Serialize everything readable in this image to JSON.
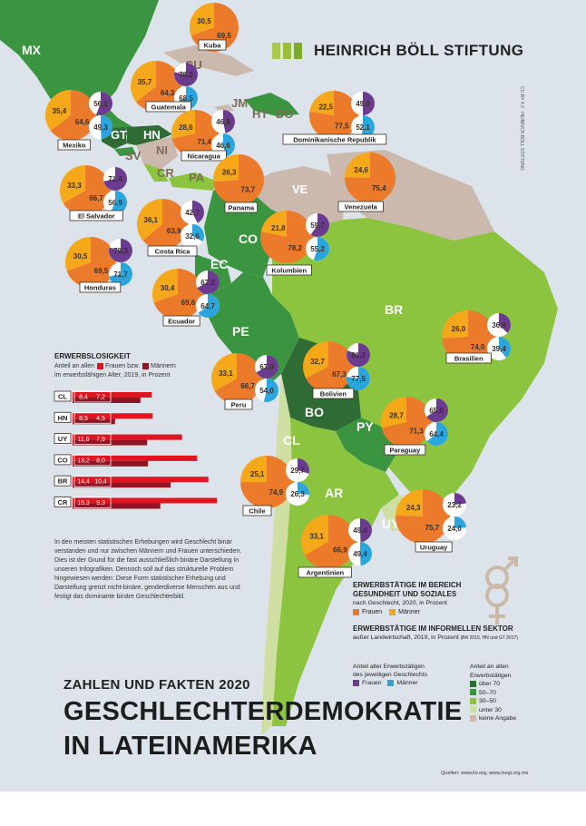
{
  "brand": {
    "name": "HEINRICH BÖLL STIFTUNG",
    "colors": [
      "#a8c94a",
      "#9bbf39",
      "#7eaa2b"
    ],
    "credit": "CC-BY 4.0 · HEINRICH BÖLL STIFTUNG"
  },
  "title": {
    "kicker": "ZAHLEN UND FAKTEN 2020",
    "line1": "GESCHLECHTERDEMOKRATIE",
    "line2": "IN LATEINAMERIKA"
  },
  "note": "In den meisten statistischen Erhebungen wird Geschlecht binär verstanden und nur zwischen Männern und Frauen unterschieden. Dies ist der Grund für die fast ausschließlich binäre Darstellung in unseren Infografiken. Dennoch soll auf das strukturelle Problem hingewiesen werden: Diese Form statistischer Erhebung und Darstellung grenzt nicht-binäre, genderdiverse Menschen aus und festigt das dominante binäre Geschlechterbild.",
  "sources": "Quellen: www.ilo.org, www.inegi.org.mx",
  "legend": {
    "health_title_1": "ERWERBSTÄTIGE IM BEREICH",
    "health_title_2": "GESUNDHEIT UND SOZIALES",
    "health_sub": "nach Geschlecht, 2020, in Prozent",
    "health_female": "Frauen",
    "health_male": "Männer",
    "informal_title": "ERWERBSTÄTIGE IM INFORMELLEN SEKTOR",
    "informal_sub": "außer Landwirtschaft, 2019, in Prozent",
    "informal_note": "(BR 2015, HN und GT 2017)",
    "share_1": "Anteil aller Erwerbstätigen",
    "share_2": "des jeweiligen Geschlechts",
    "share_female": "Frauen",
    "share_male": "Männer",
    "cat_title_1": "Anteil an allen",
    "cat_title_2": "Erwerbstätigen",
    "categories": [
      "über 70",
      "50–70",
      "30–50",
      "unter 30",
      "keine Angabe"
    ]
  },
  "colors": {
    "female_health": "#ec7a2b",
    "male_health": "#f6a81b",
    "female_informal": "#6b3b8f",
    "male_informal": "#2aa6dc",
    "over70": "#2e6b35",
    "50to70": "#3a9440",
    "30to50": "#8dc43f",
    "under30": "#cfdfa2",
    "noinfo": "#cbb9ad",
    "unemp_female": "#e1141f",
    "unemp_male": "#8f1424"
  },
  "country_codes": [
    "MX",
    "CU",
    "JM",
    "HT",
    "DO",
    "GT",
    "HN",
    "SV",
    "NI",
    "CR",
    "PA",
    "VE",
    "CO",
    "EC",
    "PE",
    "BR",
    "BO",
    "PY",
    "CL",
    "AR",
    "UY"
  ],
  "chart_data": [
    {
      "type": "bar",
      "title": "ERWERBSLOSIGKEIT",
      "subtitle": "Anteil an allen Frauen bzw. Männern im erwerbsfähigen Alter, 2019, in Prozent",
      "categories": [
        "CL",
        "HN",
        "UY",
        "CO",
        "BR",
        "CR"
      ],
      "series": [
        {
          "name": "Frauen",
          "values": [
            8.4,
            8.5,
            11.6,
            13.2,
            14.4,
            15.3
          ]
        },
        {
          "name": "Männer",
          "values": [
            7.2,
            4.5,
            7.9,
            8.0,
            10.4,
            9.3
          ]
        }
      ],
      "value_labels": {
        "female": [
          "8,4",
          "8,5",
          "11,6",
          "13,2",
          "14,4",
          "15,3"
        ],
        "male": [
          "7,2",
          "4,5",
          "7,9",
          "8,0",
          "10,4",
          "9,3"
        ]
      }
    },
    {
      "type": "pie",
      "title": "ERWERBSTÄTIGE IM BEREICH GESUNDHEIT UND SOZIALES",
      "subtitle": "nach Geschlecht, 2020, in Prozent",
      "series_names": [
        "Frauen",
        "Männer"
      ],
      "countries": [
        {
          "name": "Kuba",
          "female": "69,5",
          "male": "30,5"
        },
        {
          "name": "Guatemala",
          "female": "64,3",
          "male": "35,7"
        },
        {
          "name": "Mexiko",
          "female": "64,6",
          "male": "35,4"
        },
        {
          "name": "Nicaragua",
          "female": "71,4",
          "male": "28,6"
        },
        {
          "name": "Dominikanische Republik",
          "female": "77,5",
          "male": "22,5"
        },
        {
          "name": "El Salvador",
          "female": "66,7",
          "male": "33,3"
        },
        {
          "name": "Panama",
          "female": "73,7",
          "male": "26,3"
        },
        {
          "name": "Venezuela",
          "female": "75,4",
          "male": "24,6"
        },
        {
          "name": "Costa Rica",
          "female": "63,9",
          "male": "36,1"
        },
        {
          "name": "Kolumbien",
          "female": "78,2",
          "male": "21,8"
        },
        {
          "name": "Honduras",
          "female": "69,5",
          "male": "30,5"
        },
        {
          "name": "Ecuador",
          "female": "69,6",
          "male": "30,4"
        },
        {
          "name": "Brasilien",
          "female": "74,0",
          "male": "26,0"
        },
        {
          "name": "Peru",
          "female": "66,7",
          "male": "33,1"
        },
        {
          "name": "Bolivien",
          "female": "67,3",
          "male": "32,7"
        },
        {
          "name": "Paraguay",
          "female": "71,3",
          "male": "28,7"
        },
        {
          "name": "Chile",
          "female": "74,9",
          "male": "25,1"
        },
        {
          "name": "Uruguay",
          "female": "75,7",
          "male": "24,3"
        },
        {
          "name": "Argentinien",
          "female": "66,9",
          "male": "33,1"
        }
      ]
    },
    {
      "type": "pie",
      "title": "ERWERBSTÄTIGE IM INFORMELLEN SEKTOR",
      "subtitle": "außer Landwirtschaft, 2019, in Prozent",
      "series_names": [
        "Frauen",
        "Männer"
      ],
      "countries": [
        {
          "name": "Guatemala",
          "female": "78,2",
          "male": "68,5"
        },
        {
          "name": "Mexiko",
          "female": "56,1",
          "male": "49,3"
        },
        {
          "name": "Nicaragua",
          "female": "46,8",
          "male": "46,6"
        },
        {
          "name": "Dominikanische Republik",
          "female": "49,9",
          "male": "52,1"
        },
        {
          "name": "El Salvador",
          "female": "71,4",
          "male": "56,9"
        },
        {
          "name": "Costa Rica",
          "female": "42,7",
          "male": "32,6"
        },
        {
          "name": "Kolumbien",
          "female": "59,7",
          "male": "55,2"
        },
        {
          "name": "Honduras",
          "female": "79,3",
          "male": "71,7"
        },
        {
          "name": "Ecuador",
          "female": "67,2",
          "male": "64,7"
        },
        {
          "name": "Brasilien",
          "female": "36,9",
          "male": "39,4"
        },
        {
          "name": "Peru",
          "female": "67,0",
          "male": "54,0"
        },
        {
          "name": "Bolivien",
          "female": "81,2",
          "male": "77,5"
        },
        {
          "name": "Paraguay",
          "female": "65,8",
          "male": "64,4"
        },
        {
          "name": "Chile",
          "female": "29,7",
          "male": "26,3"
        },
        {
          "name": "Uruguay",
          "female": "23,2",
          "male": "24,0"
        },
        {
          "name": "Argentinien",
          "female": "49,4",
          "male": "49,4"
        }
      ]
    }
  ]
}
